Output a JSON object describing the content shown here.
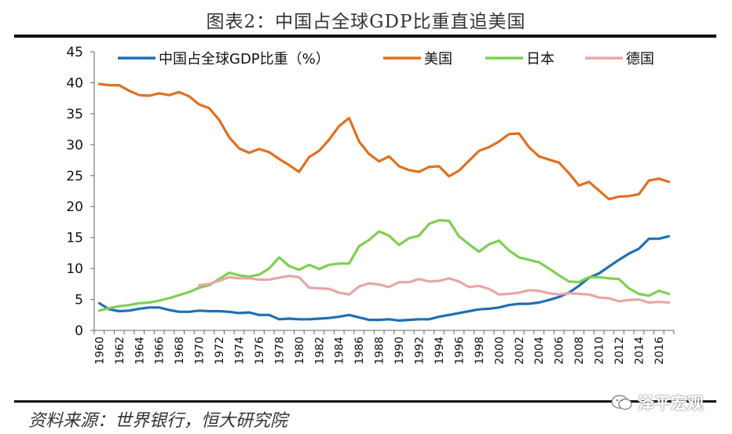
{
  "title": "图表2：中国占全球GDP比重直追美国",
  "source": "资料来源：世界银行，恒大研究院",
  "watermark": "泽平宏观",
  "chart_data": {
    "type": "line",
    "xlim": [
      1960,
      2017
    ],
    "ylim": [
      0,
      45
    ],
    "yticks": [
      0,
      5,
      10,
      15,
      20,
      25,
      30,
      35,
      40,
      45
    ],
    "xticks": [
      1960,
      1962,
      1964,
      1966,
      1968,
      1970,
      1972,
      1974,
      1976,
      1978,
      1980,
      1982,
      1984,
      1986,
      1988,
      1990,
      1992,
      1994,
      1996,
      1998,
      2000,
      2002,
      2004,
      2006,
      2008,
      2010,
      2012,
      2014,
      2016
    ],
    "legend_position": "top",
    "x": [
      1960,
      1961,
      1962,
      1963,
      1964,
      1965,
      1966,
      1967,
      1968,
      1969,
      1970,
      1971,
      1972,
      1973,
      1974,
      1975,
      1976,
      1977,
      1978,
      1979,
      1980,
      1981,
      1982,
      1983,
      1984,
      1985,
      1986,
      1987,
      1988,
      1989,
      1990,
      1991,
      1992,
      1993,
      1994,
      1995,
      1996,
      1997,
      1998,
      1999,
      2000,
      2001,
      2002,
      2003,
      2004,
      2005,
      2006,
      2007,
      2008,
      2009,
      2010,
      2011,
      2012,
      2013,
      2014,
      2015,
      2016,
      2017
    ],
    "series": [
      {
        "name": "中国占全球GDP比重（%）",
        "color": "#1f6fb4",
        "values": [
          4.4,
          3.4,
          3.1,
          3.2,
          3.5,
          3.7,
          3.7,
          3.3,
          3.0,
          3.0,
          3.2,
          3.1,
          3.1,
          3.0,
          2.8,
          2.9,
          2.5,
          2.5,
          1.8,
          1.9,
          1.8,
          1.8,
          1.9,
          2.0,
          2.2,
          2.5,
          2.1,
          1.7,
          1.7,
          1.8,
          1.6,
          1.7,
          1.8,
          1.8,
          2.2,
          2.5,
          2.8,
          3.1,
          3.4,
          3.5,
          3.7,
          4.1,
          4.3,
          4.3,
          4.5,
          4.9,
          5.4,
          6.1,
          7.2,
          8.5,
          9.2,
          10.3,
          11.4,
          12.4,
          13.2,
          14.8,
          14.8,
          15.2
        ]
      },
      {
        "name": "美国",
        "color": "#e07020",
        "values": [
          39.8,
          39.6,
          39.6,
          38.7,
          38.0,
          37.9,
          38.3,
          38.0,
          38.5,
          37.8,
          36.5,
          35.9,
          34.0,
          31.2,
          29.4,
          28.7,
          29.3,
          28.8,
          27.7,
          26.7,
          25.6,
          28.0,
          29.0,
          30.8,
          33.0,
          34.3,
          30.5,
          28.5,
          27.3,
          28.1,
          26.5,
          25.9,
          25.6,
          26.4,
          26.5,
          24.9,
          25.8,
          27.4,
          29.0,
          29.6,
          30.5,
          31.7,
          31.8,
          29.6,
          28.1,
          27.6,
          27.1,
          25.4,
          23.4,
          24.0,
          22.6,
          21.2,
          21.6,
          21.7,
          22.0,
          24.2,
          24.5,
          24.0
        ]
      },
      {
        "name": "日本",
        "color": "#7fcf52",
        "values": [
          3.2,
          3.6,
          3.9,
          4.1,
          4.4,
          4.5,
          4.8,
          5.2,
          5.7,
          6.2,
          6.9,
          7.3,
          8.3,
          9.3,
          8.9,
          8.7,
          9.0,
          10.0,
          11.8,
          10.4,
          9.8,
          10.6,
          9.9,
          10.6,
          10.8,
          10.8,
          13.6,
          14.6,
          16.0,
          15.3,
          13.8,
          14.9,
          15.3,
          17.2,
          17.8,
          17.7,
          15.2,
          13.9,
          12.7,
          13.9,
          14.5,
          12.9,
          11.8,
          11.4,
          11.0,
          10.0,
          8.9,
          7.9,
          7.8,
          8.6,
          8.6,
          8.4,
          8.3,
          6.8,
          5.9,
          5.6,
          6.4,
          5.9
        ]
      },
      {
        "name": "德国",
        "color": "#e8a6a6",
        "values": [
          null,
          null,
          null,
          null,
          null,
          null,
          null,
          null,
          null,
          null,
          7.3,
          7.5,
          8.0,
          8.6,
          8.4,
          8.4,
          8.2,
          8.2,
          8.5,
          8.8,
          8.6,
          6.9,
          6.8,
          6.7,
          6.1,
          5.8,
          7.1,
          7.6,
          7.4,
          7.0,
          7.8,
          7.8,
          8.3,
          7.9,
          8.0,
          8.4,
          7.9,
          7.0,
          7.2,
          6.7,
          5.8,
          5.9,
          6.1,
          6.5,
          6.4,
          6.0,
          5.8,
          6.0,
          5.9,
          5.8,
          5.3,
          5.2,
          4.7,
          4.9,
          5.0,
          4.5,
          4.6,
          4.5
        ]
      }
    ]
  }
}
